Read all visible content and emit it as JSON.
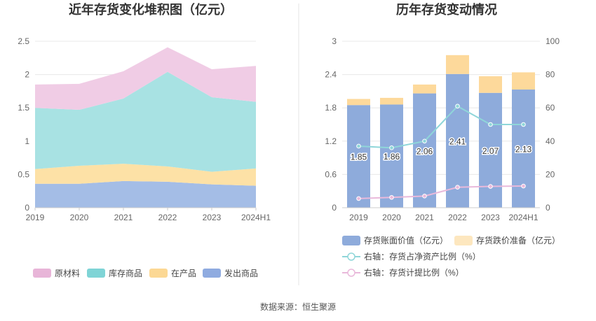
{
  "source": "数据来源：恒生聚源",
  "chart_data": [
    {
      "type": "area",
      "title": "近年存货变化堆积图（亿元）",
      "categories": [
        "2019",
        "2020",
        "2021",
        "2022",
        "2023",
        "2024H1"
      ],
      "ylim": [
        0,
        2.5
      ],
      "yticks": [
        "0",
        "0.5",
        "1",
        "1.5",
        "2",
        "2.5"
      ],
      "stacked": true,
      "series": [
        {
          "name": "发出商品",
          "color": "#a4bde6",
          "values": [
            0.36,
            0.36,
            0.4,
            0.39,
            0.35,
            0.33
          ]
        },
        {
          "name": "在产品",
          "color": "#fde1a6",
          "values": [
            0.22,
            0.27,
            0.26,
            0.23,
            0.19,
            0.26
          ]
        },
        {
          "name": "库存商品",
          "color": "#a8e2e3",
          "values": [
            0.92,
            0.84,
            0.98,
            1.42,
            1.12,
            1.0
          ]
        },
        {
          "name": "原材料",
          "color": "#f0cce5",
          "values": [
            0.35,
            0.39,
            0.41,
            0.37,
            0.42,
            0.54
          ]
        }
      ],
      "legend": [
        {
          "name": "原材料",
          "color": "#e8b5d8"
        },
        {
          "name": "库存商品",
          "color": "#7fd4d6"
        },
        {
          "name": "在产品",
          "color": "#fcd894"
        },
        {
          "name": "发出商品",
          "color": "#8fabe0"
        }
      ],
      "legend_position": "bottom",
      "grid": true
    },
    {
      "type": "bar",
      "title": "历年存货变动情况",
      "categories": [
        "2019",
        "2020",
        "2021",
        "2022",
        "2023",
        "2024H1"
      ],
      "ylim": [
        0,
        3
      ],
      "yticks": [
        "0",
        "0.6",
        "1.2",
        "1.8",
        "2.4",
        "3"
      ],
      "y2lim": [
        0,
        100
      ],
      "y2ticks": [
        "0",
        "20",
        "40",
        "60",
        "80",
        "100"
      ],
      "bar_series": [
        {
          "name": "存货账面价值（亿元）",
          "color": "#8eabdb",
          "values": [
            1.85,
            1.86,
            2.06,
            2.41,
            2.07,
            2.13
          ],
          "labels": [
            "1.85",
            "1.86",
            "2.06",
            "2.41",
            "2.07",
            "2.13"
          ]
        },
        {
          "name": "存货跌价准备（亿元）",
          "color": "#fdd99b",
          "values": [
            0.11,
            0.12,
            0.16,
            0.34,
            0.3,
            0.31
          ]
        }
      ],
      "line_series": [
        {
          "name": "右轴：存货占净资产比例（%）",
          "color": "#8fd6d9",
          "values": [
            37,
            36,
            40,
            61,
            50,
            50
          ]
        },
        {
          "name": "右轴：存货计提比例（%）",
          "color": "#e9b9db",
          "values": [
            5.5,
            6.2,
            7.0,
            12.3,
            12.8,
            13.0
          ]
        }
      ],
      "legend_position": "bottom",
      "grid": true
    }
  ]
}
